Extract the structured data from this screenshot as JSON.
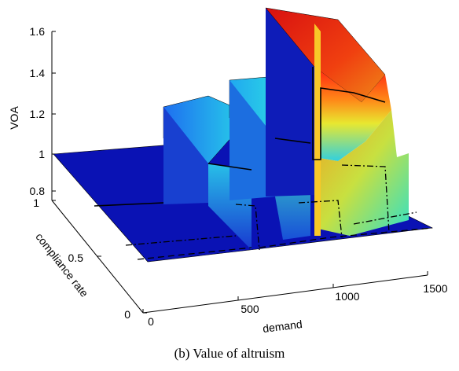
{
  "caption": "(b) Value of altruism",
  "chart_data": {
    "type": "surface3d",
    "title": "",
    "xlabel": "demand",
    "ylabel": "compliance rate",
    "zlabel": "VOA",
    "xlim": [
      0,
      1500
    ],
    "ylim": [
      0,
      1
    ],
    "zlim": [
      0.8,
      1.6
    ],
    "x_ticks": [
      "0",
      "500",
      "1000",
      "1500"
    ],
    "y_ticks": [
      "0",
      "0.5",
      "1"
    ],
    "z_ticks": [
      "0.8",
      "1",
      "1.2",
      "1.4",
      "1.6"
    ],
    "colormap": "jet",
    "grid": false,
    "segments": [
      {
        "demand_range": [
          0,
          500
        ],
        "voa_at_compliance_1": 1.0,
        "voa_at_compliance_0": 1.0
      },
      {
        "demand_range": [
          500,
          700
        ],
        "voa_at_compliance_1": 1.17,
        "voa_at_compliance_0": 1.0
      },
      {
        "demand_range": [
          700,
          900
        ],
        "voa_at_compliance_1": 1.27,
        "voa_at_compliance_0": 1.0
      },
      {
        "demand_range": [
          900,
          1300
        ],
        "voa_at_compliance_1": 1.6,
        "voa_at_compliance_0": 1.0
      },
      {
        "demand_range": [
          1300,
          1500
        ],
        "voa_at_compliance_1": 1.0,
        "voa_at_compliance_0": 1.0
      }
    ],
    "colors": {
      "base": "#0d10b8",
      "low": "#1a4fe0",
      "mid": "#22d4e0",
      "high": "#f0d020",
      "top": "#e01010"
    }
  }
}
